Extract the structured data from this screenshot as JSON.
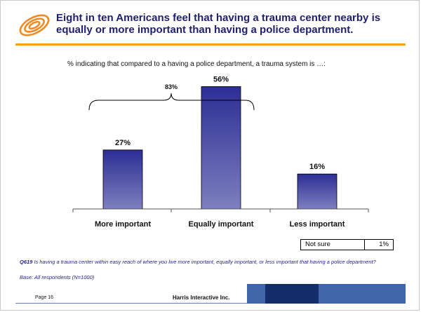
{
  "title": "Eight in ten Americans feel that having a trauma center nearby is equally or more important than having a police department.",
  "subtitle": "% indicating that compared to a having a police department, a trauma system is …:",
  "colors": {
    "bar_top": "#2d2e94",
    "bar_bottom": "#7d7fbf",
    "title_rule": "#f6a020",
    "logo": "#f08a22",
    "title_text": "#1f1f6e",
    "note_text": "#1f1f8f"
  },
  "chart_data": {
    "type": "bar",
    "categories": [
      "More important",
      "Equally important",
      "Less important"
    ],
    "values": [
      27,
      56,
      16
    ],
    "value_labels": [
      "27%",
      "56%",
      "16%"
    ],
    "ylim": [
      0,
      60
    ],
    "grid": false,
    "bracket": {
      "label": "83%",
      "spans": [
        "More important",
        "Equally important"
      ]
    }
  },
  "not_sure": {
    "label": "Not sure",
    "value": "1%"
  },
  "question": {
    "code": "Q619",
    "text": " Is having a trauma center within easy reach of where you live more important, equally important, or less important that having a police department?"
  },
  "base": "Base:    All respondents (N=1000)",
  "footer": {
    "page": "Page 16",
    "company": "Harris Interactive Inc."
  }
}
